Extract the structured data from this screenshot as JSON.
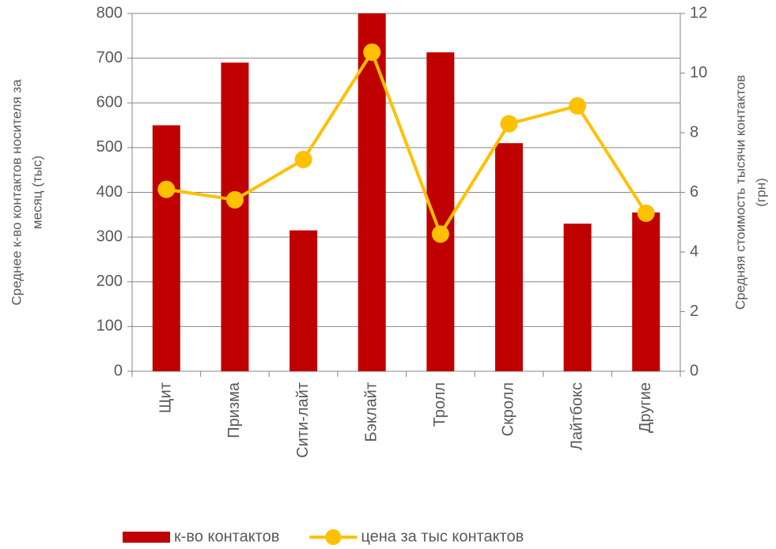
{
  "chart_data": {
    "type": "bar-line",
    "y_label": [
      "Среднее к-во контактов носителя за",
      "месяц (тыс)"
    ],
    "y2_label": [
      "Средняя стоимость тысячи контактов",
      "(грн)"
    ],
    "categories": [
      "Щит",
      "Призма",
      "Сити-лайт",
      "Бэклайт",
      "Тролл",
      "Скролл",
      "Лайтбокс",
      "Другие"
    ],
    "series": [
      {
        "name": "к-во контактов",
        "type": "bar",
        "color": "#c00000",
        "values": [
          550,
          690,
          315,
          800,
          713,
          510,
          330,
          355
        ]
      },
      {
        "name": "цена за тыс контактов",
        "type": "line",
        "axis": "y2",
        "color": "#ffc000",
        "values": [
          6.1,
          5.75,
          7.1,
          10.7,
          4.6,
          8.3,
          8.9,
          5.3
        ]
      }
    ],
    "ylim": [
      0,
      800
    ],
    "yticks": [
      0,
      100,
      200,
      300,
      400,
      500,
      600,
      700,
      800
    ],
    "y2lim": [
      0,
      12
    ],
    "y2ticks": [
      0,
      2,
      4,
      6,
      8,
      10,
      12
    ],
    "grid": true,
    "legend": "bottom"
  }
}
